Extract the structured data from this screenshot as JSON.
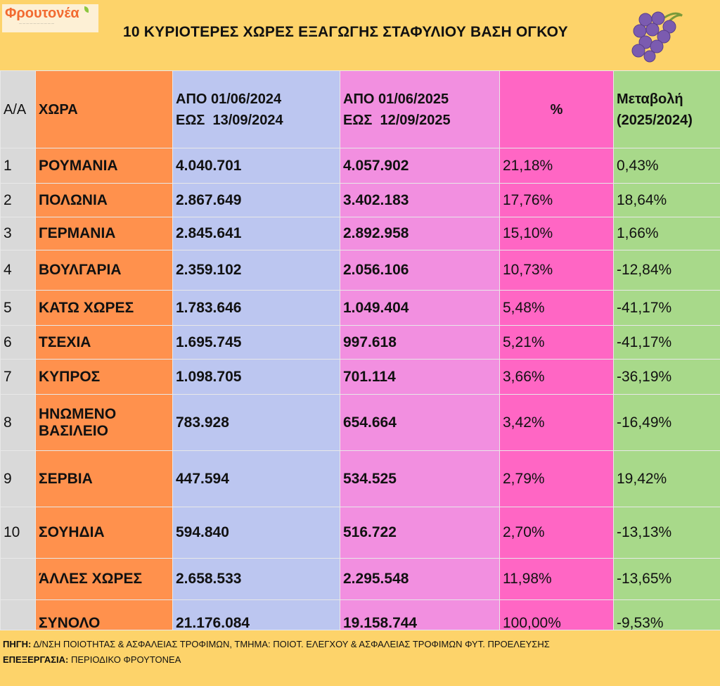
{
  "logo": {
    "name": "Φρουτονέα"
  },
  "title": "10 ΚΥΡΙΟΤΕΡΕΣ ΧΩΡΕΣ ΕΞΑΓΩΓΗΣ ΣΤΑΦΥΛΙΟΥ ΒΑΣΗ ΟΓΚΟΥ",
  "header": {
    "aa": "Α/Α",
    "country": "ΧΩΡΑ",
    "p2024_l1": "ΑΠΟ 01/06/2024",
    "p2024_l2": "ΕΩΣ  13/09/2024",
    "p2025_l1": "ΑΠΟ 01/06/2025",
    "p2025_l2": "ΕΩΣ  12/09/2025",
    "pct": "%",
    "chg_l1": "Μεταβολή",
    "chg_l2": "(2025/2024)"
  },
  "rows": [
    {
      "aa": "1",
      "country": "ΡΟΥΜΑΝΙΑ",
      "v2024": "4.040.701",
      "v2025": "4.057.902",
      "pct": "21,18%",
      "chg": "0,43%"
    },
    {
      "aa": "2",
      "country": "ΠΟΛΩΝΙΑ",
      "v2024": "2.867.649",
      "v2025": "3.402.183",
      "pct": "17,76%",
      "chg": "18,64%"
    },
    {
      "aa": "3",
      "country": "ΓΕΡΜΑΝΙΑ",
      "v2024": "2.845.641",
      "v2025": "2.892.958",
      "pct": "15,10%",
      "chg": "1,66%"
    },
    {
      "aa": "4",
      "country": "ΒΟΥΛΓΑΡΙΑ",
      "v2024": "2.359.102",
      "v2025": "2.056.106",
      "pct": "10,73%",
      "chg": "-12,84%"
    },
    {
      "aa": "5",
      "country": "ΚΑΤΩ ΧΩΡΕΣ",
      "v2024": "1.783.646",
      "v2025": "1.049.404",
      "pct": "5,48%",
      "chg": "-41,17%"
    },
    {
      "aa": "6",
      "country": "ΤΣΕΧΙΑ",
      "v2024": "1.695.745",
      "v2025": "997.618",
      "pct": "5,21%",
      "chg": "-41,17%"
    },
    {
      "aa": "7",
      "country": "ΚΥΠΡΟΣ",
      "v2024": "1.098.705",
      "v2025": "701.114",
      "pct": "3,66%",
      "chg": "-36,19%"
    },
    {
      "aa": "8",
      "country": "ΗΝΩΜΕΝΟ ΒΑΣΙΛΕΙΟ",
      "v2024": "783.928",
      "v2025": "654.664",
      "pct": "3,42%",
      "chg": "-16,49%"
    },
    {
      "aa": "9",
      "country": "ΣΕΡΒΙΑ",
      "v2024": "447.594",
      "v2025": "534.525",
      "pct": "2,79%",
      "chg": "19,42%"
    },
    {
      "aa": "10",
      "country": "ΣΟΥΗΔΙΑ",
      "v2024": "594.840",
      "v2025": "516.722",
      "pct": "2,70%",
      "chg": "-13,13%"
    },
    {
      "aa": "",
      "country": "ΆΛΛΕΣ ΧΩΡΕΣ",
      "v2024": "2.658.533",
      "v2025": "2.295.548",
      "pct": "11,98%",
      "chg": "-13,65%"
    },
    {
      "aa": "",
      "country": "ΣΥΝΟΛΟ",
      "v2024": "21.176.084",
      "v2025": "19.158.744",
      "pct": "100,00%",
      "chg": "-9,53%"
    }
  ],
  "footer": {
    "source_label": "ΠΗΓΗ:",
    "source": " Δ/ΝΣΗ ΠΟΙΟΤΗΤΑΣ & ΑΣΦΑΛΕΙΑΣ ΤΡΟΦΙΜΩΝ, ΤΜΗΜΑ: ΠΟΙΟΤ. ΕΛΕΓΧΟΥ & ΑΣΦΑΛΕΙΑΣ ΤΡΟΦΙΜΩΝ ΦΥΤ. ΠΡΟΕΛΕΥΣΗΣ",
    "proc_label": "ΕΠΕΞΕΡΓΑΣΙΑ:",
    "proc": " ΠΕΡΙΟΔΙΚΟ ΦΡΟΥΤΟΝΕΑ"
  }
}
